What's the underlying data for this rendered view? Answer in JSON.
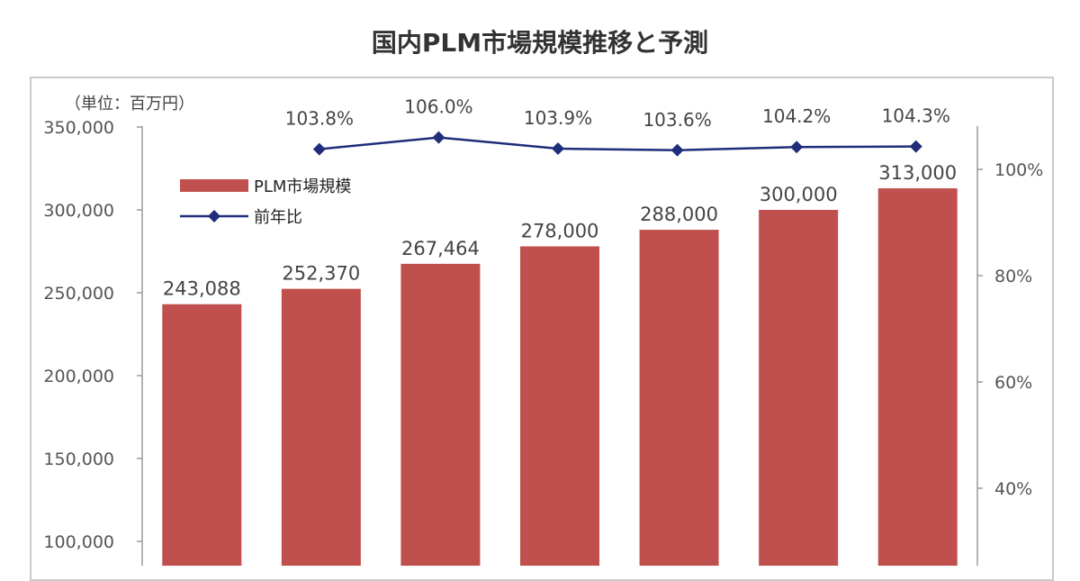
{
  "title": "国内PLM市場規模推移と予測",
  "chart_data": {
    "type": "bar",
    "unit_label": "（単位：百万円）",
    "series": [
      {
        "name": "PLM市場規模",
        "type": "bar",
        "color": "#c0504d",
        "values": [
          243088,
          252370,
          267464,
          278000,
          288000,
          300000,
          313000
        ],
        "value_labels": [
          "243,088",
          "252,370",
          "267,464",
          "278,000",
          "288,000",
          "300,000",
          "313,000"
        ]
      },
      {
        "name": "前年比",
        "type": "line",
        "color": "#1f2d7a",
        "axis": "right",
        "values": [
          103.8,
          106.0,
          103.9,
          103.6,
          104.2,
          104.3
        ],
        "value_labels": [
          "103.8%",
          "106.0%",
          "103.9%",
          "103.6%",
          "104.2%",
          "104.3%"
        ],
        "starts_at_category_index": 1
      }
    ],
    "y_left": {
      "ticks": [
        350000,
        300000,
        250000,
        200000,
        150000,
        100000
      ],
      "tick_labels": [
        "350,000",
        "300,000",
        "250,000",
        "200,000",
        "150,000",
        "100,000"
      ],
      "range": [
        50000,
        350000
      ]
    },
    "y_right": {
      "ticks": [
        100,
        80,
        60,
        40
      ],
      "tick_labels": [
        "100%",
        "80%",
        "60%",
        "40%"
      ],
      "range": [
        0,
        120
      ]
    },
    "legend_position": "top-left",
    "grid": false
  }
}
